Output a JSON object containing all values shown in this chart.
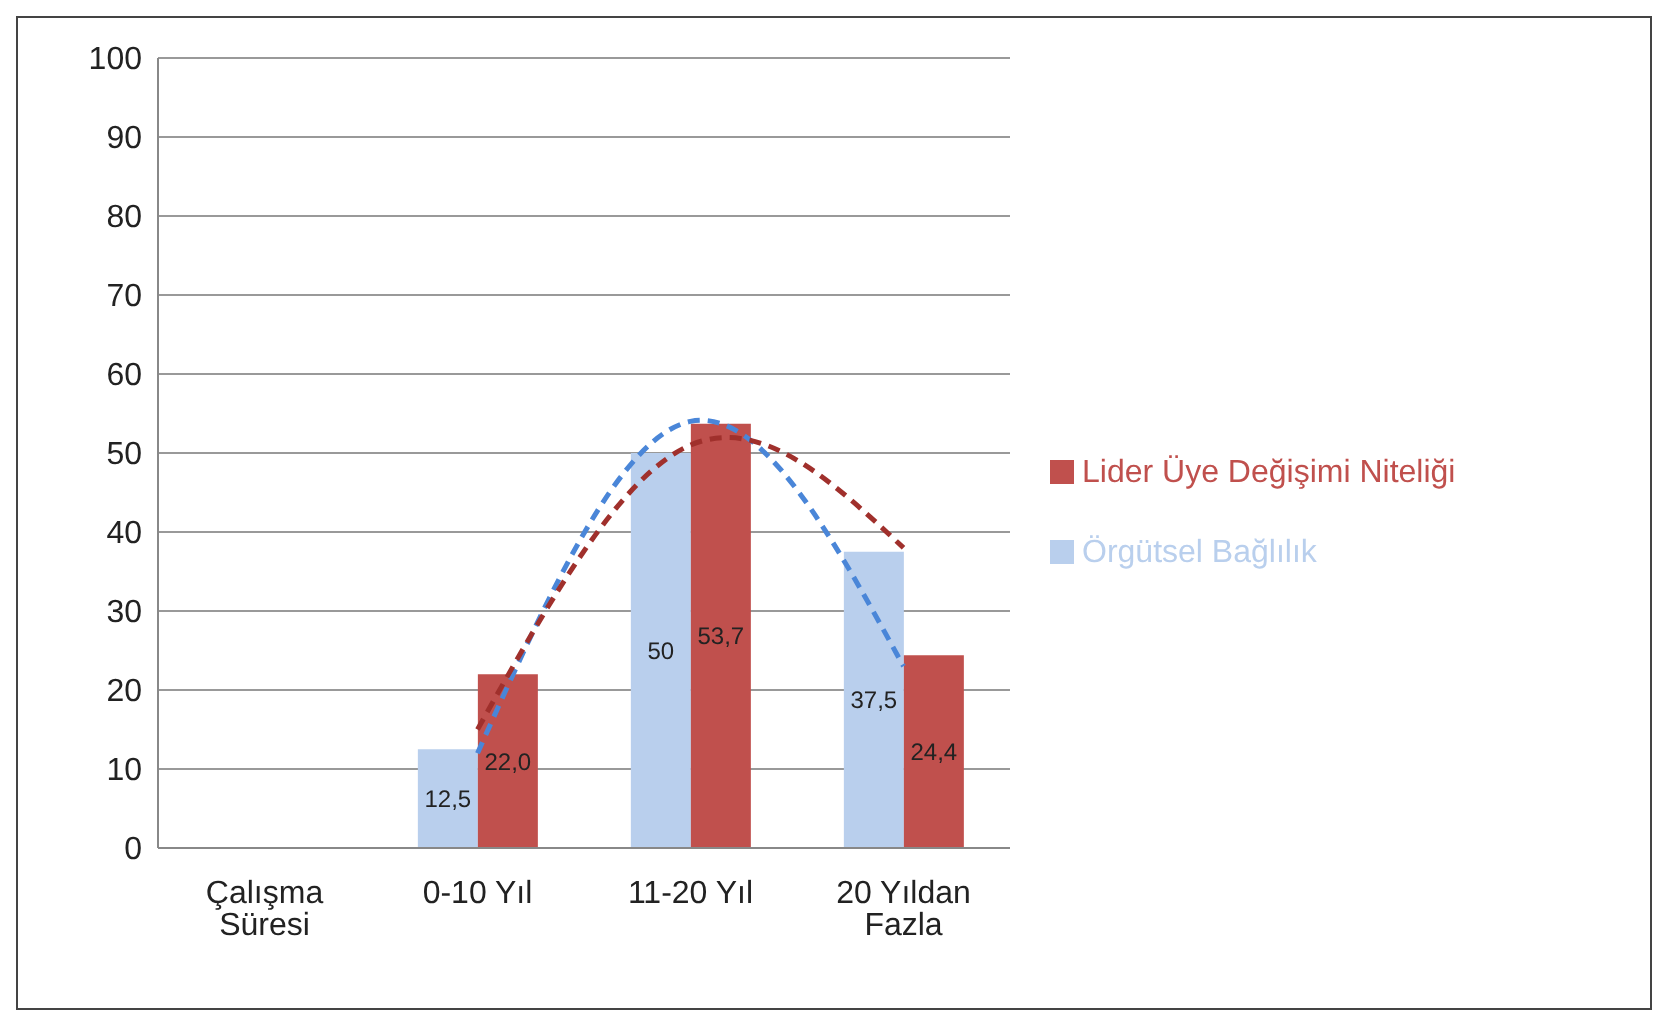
{
  "chart_data": {
    "type": "bar",
    "categories": [
      "Çalışma Süresi",
      "0-10 Yıl",
      "11-20 Yıl",
      "20 Yıldan Fazla"
    ],
    "series": [
      {
        "name": "Örgütsel Bağlılık",
        "color": "#b9cfed",
        "values": [
          null,
          12.5,
          50,
          37.5
        ],
        "value_labels": [
          null,
          "12,5",
          "50",
          "37,5"
        ]
      },
      {
        "name": "Lider Üye Değişimi Niteliği",
        "color": "#c0504d",
        "values": [
          null,
          22.0,
          53.7,
          24.4
        ],
        "value_labels": [
          null,
          "22,0",
          "53,7",
          "24,4"
        ]
      },
      {
        "type": "line",
        "color": "#4a86d8",
        "line_style": "dashed",
        "values": [
          null,
          12,
          54,
          23
        ]
      },
      {
        "type": "line",
        "color": "#a0302c",
        "line_style": "dashed",
        "values": [
          null,
          15,
          51,
          38
        ]
      }
    ],
    "ylim": [
      0,
      100
    ],
    "yticks": [
      0,
      10,
      20,
      30,
      40,
      50,
      60,
      70,
      80,
      90,
      100
    ],
    "grid": "y",
    "legend": "right"
  }
}
